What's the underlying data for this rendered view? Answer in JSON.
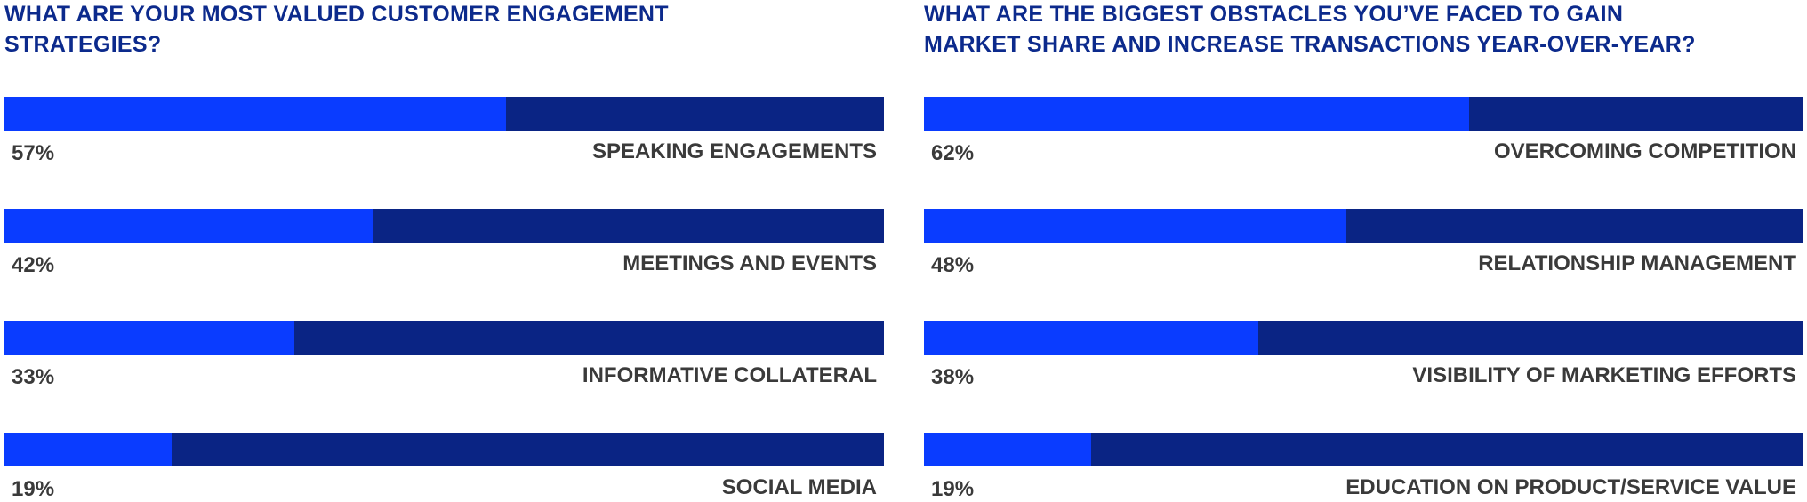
{
  "chart_data": [
    {
      "type": "bar",
      "title": [
        "WHAT ARE YOUR MOST VALUED CUSTOMER ENGAGEMENT",
        "STRATEGIES?"
      ],
      "categories": [
        "SPEAKING ENGAGEMENTS",
        "MEETINGS AND EVENTS",
        "INFORMATIVE COLLATERAL",
        "SOCIAL MEDIA"
      ],
      "values": [
        57,
        42,
        33,
        19
      ],
      "value_labels": [
        "57%",
        "42%",
        "33%",
        "19%"
      ],
      "xlim": [
        0,
        100
      ],
      "color": "#0a3cff",
      "track_color": "#0a2484"
    },
    {
      "type": "bar",
      "title": [
        "WHAT ARE THE BIGGEST OBSTACLES YOU’VE FACED TO GAIN",
        "MARKET SHARE AND INCREASE TRANSACTIONS YEAR-OVER-YEAR?"
      ],
      "categories": [
        "OVERCOMING COMPETITION",
        "RELATIONSHIP MANAGEMENT",
        "VISIBILITY OF MARKETING EFFORTS",
        "EDUCATION ON PRODUCT/SERVICE VALUE"
      ],
      "values": [
        62,
        48,
        38,
        19
      ],
      "value_labels": [
        "62%",
        "48%",
        "38%",
        "19%"
      ],
      "xlim": [
        0,
        100
      ],
      "color": "#0a3cff",
      "track_color": "#0a2484"
    }
  ]
}
